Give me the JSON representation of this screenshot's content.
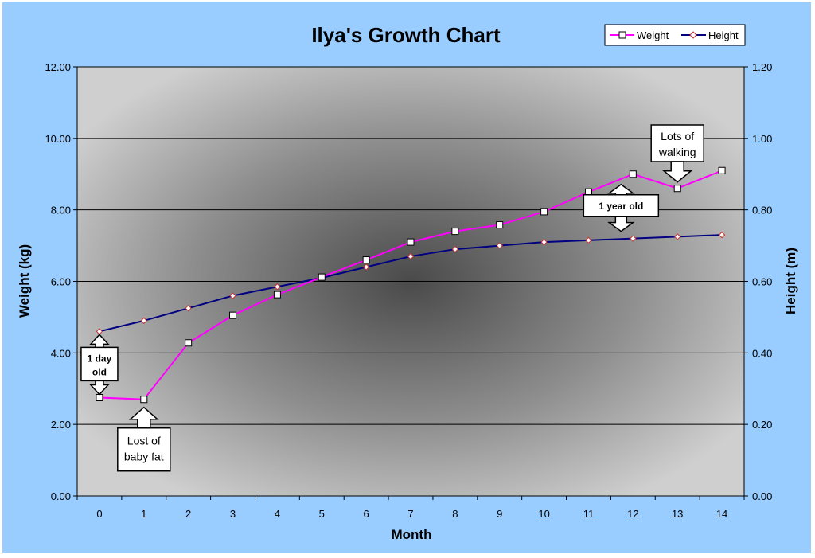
{
  "chart_data": {
    "type": "line",
    "title": "Ilya's Growth Chart",
    "xlabel": "Month",
    "ylabel": "Weight (kg)",
    "y2label": "Height (m)",
    "x": [
      0,
      1,
      2,
      3,
      4,
      5,
      6,
      7,
      8,
      9,
      10,
      11,
      12,
      13,
      14
    ],
    "x_tick_labels": [
      "0",
      "1",
      "2",
      "3",
      "4",
      "5",
      "6",
      "7",
      "8",
      "9",
      "10",
      "11",
      "12",
      "13",
      "14"
    ],
    "ylim": [
      0,
      12
    ],
    "y_tick_labels": [
      "0.00",
      "2.00",
      "4.00",
      "6.00",
      "8.00",
      "10.00",
      "12.00"
    ],
    "y2lim": [
      0,
      1.2
    ],
    "y2_tick_labels": [
      "0.00",
      "0.20",
      "0.40",
      "0.60",
      "0.80",
      "1.00",
      "1.20"
    ],
    "grid": true,
    "legend_position": "top-right",
    "series": [
      {
        "name": "Weight",
        "axis": "left",
        "color": "#ff00ff",
        "marker": "square",
        "values": [
          2.75,
          2.7,
          4.28,
          5.05,
          5.63,
          6.12,
          6.6,
          7.1,
          7.4,
          7.58,
          7.95,
          8.5,
          9.0,
          8.6,
          9.1
        ]
      },
      {
        "name": "Height",
        "axis": "right",
        "color": "#000080",
        "marker": "diamond",
        "values": [
          0.46,
          0.49,
          0.525,
          0.56,
          0.585,
          0.61,
          0.64,
          0.67,
          0.69,
          0.7,
          0.71,
          0.715,
          0.72,
          0.725,
          0.73
        ]
      }
    ],
    "annotations": [
      {
        "id": "one-day",
        "text_lines": [
          "1 day",
          "old"
        ],
        "bold": true,
        "x": 0,
        "weight": 2.75,
        "height": 0.46
      },
      {
        "id": "baby-fat",
        "text_lines": [
          "Lost of",
          "baby fat"
        ],
        "bold": false,
        "x": 1,
        "weight": 2.7
      },
      {
        "id": "one-year",
        "text_lines": [
          "1 year old"
        ],
        "bold": true,
        "x": 12,
        "weight": 9.0,
        "height": 0.72
      },
      {
        "id": "walking",
        "text_lines": [
          "Lots of",
          "walking"
        ],
        "bold": false,
        "x": 13,
        "weight": 8.6
      }
    ]
  }
}
